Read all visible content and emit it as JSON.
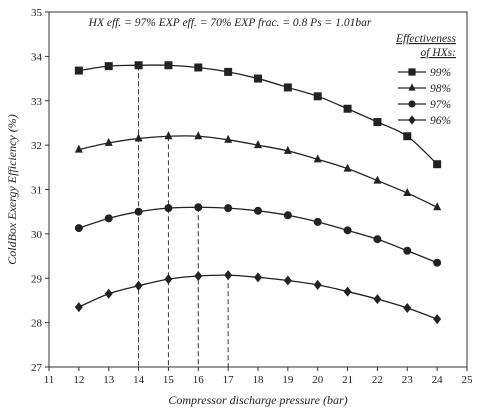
{
  "chart_data": {
    "type": "line",
    "annotation": "HX eff. = 97%     EXP eff. = 70%     EXP frac. = 0.8     Ps = 1.01bar",
    "xlabel": "Compressor discharge pressure (bar)",
    "ylabel": "ColdBox Exergy Efficiency (%)",
    "xlim": [
      11,
      25
    ],
    "ylim": [
      27,
      35
    ],
    "x_ticks": [
      11,
      12,
      13,
      14,
      15,
      16,
      17,
      18,
      19,
      20,
      21,
      22,
      23,
      24,
      25
    ],
    "y_ticks": [
      27,
      28,
      29,
      30,
      31,
      32,
      33,
      34,
      35
    ],
    "grid": false,
    "legend": {
      "title_line1": "Effectiveness",
      "title_line2": "of HXs:",
      "placement": "right"
    },
    "x": [
      12,
      13,
      14,
      15,
      16,
      17,
      18,
      19,
      20,
      21,
      22,
      23,
      24
    ],
    "series": [
      {
        "name": "99%",
        "marker": "square",
        "values": [
          33.68,
          33.78,
          33.8,
          33.8,
          33.75,
          33.65,
          33.5,
          33.3,
          33.1,
          32.82,
          32.52,
          32.2,
          31.57
        ]
      },
      {
        "name": "98%",
        "marker": "triangle",
        "values": [
          31.9,
          32.05,
          32.15,
          32.2,
          32.2,
          32.12,
          32.0,
          31.87,
          31.68,
          31.47,
          31.2,
          30.92,
          30.6
        ]
      },
      {
        "name": "97%",
        "marker": "circle",
        "values": [
          30.13,
          30.35,
          30.5,
          30.58,
          30.6,
          30.58,
          30.52,
          30.42,
          30.27,
          30.08,
          29.88,
          29.62,
          29.35
        ]
      },
      {
        "name": "96%",
        "marker": "diamond",
        "values": [
          28.35,
          28.65,
          28.83,
          28.98,
          29.05,
          29.07,
          29.02,
          28.95,
          28.85,
          28.7,
          28.53,
          28.33,
          28.08
        ]
      }
    ],
    "guide_lines": [
      {
        "x": 14,
        "to_y": 33.8
      },
      {
        "x": 15,
        "to_y": 32.2
      },
      {
        "x": 16,
        "to_y": 30.6
      },
      {
        "x": 17,
        "to_y": 29.07
      }
    ],
    "colors": {
      "series": "#222222",
      "axis": "#333333"
    }
  }
}
